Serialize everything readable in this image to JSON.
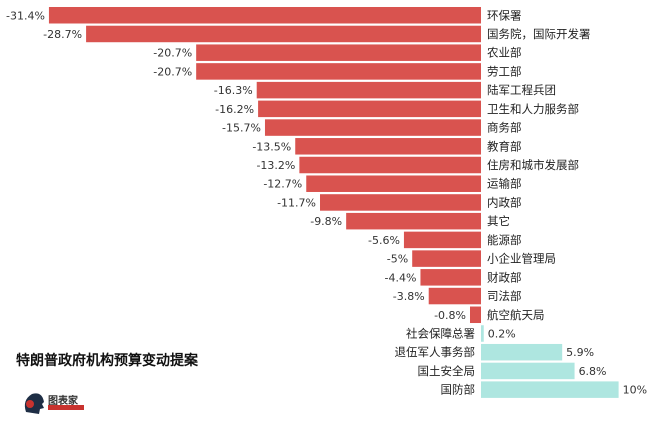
{
  "chart_data": {
    "type": "bar",
    "orientation": "horizontal",
    "title": "特朗普政府机构预算变动提案",
    "value_suffix": "%",
    "categories": [
      "环保署",
      "国务院，国际开发署",
      "农业部",
      "劳工部",
      "陆军工程兵团",
      "卫生和人力服务部",
      "商务部",
      "教育部",
      "住房和城市发展部",
      "运输部",
      "内政部",
      "其它",
      "能源部",
      "小企业管理局",
      "财政部",
      "司法部",
      "航空航天局",
      "社会保障总署",
      "退伍军人事务部",
      "国土安全局",
      "国防部"
    ],
    "values": [
      -31.4,
      -28.7,
      -20.7,
      -20.7,
      -16.3,
      -16.2,
      -15.7,
      -13.5,
      -13.2,
      -12.7,
      -11.7,
      -9.8,
      -5.6,
      -5,
      -4.4,
      -3.8,
      -0.8,
      0.2,
      5.9,
      6.8,
      10
    ],
    "labels": [
      "-31.4%",
      "-28.7%",
      "-20.7%",
      "-20.7%",
      "-16.3%",
      "-16.2%",
      "-15.7%",
      "-13.5%",
      "-13.2%",
      "-12.7%",
      "-11.7%",
      "-9.8%",
      "-5.6%",
      "-5%",
      "-4.4%",
      "-3.8%",
      "-0.8%",
      "0.2%",
      "5.9%",
      "6.8%",
      "10%"
    ],
    "xlim": [
      -31.4,
      10
    ],
    "grid": false,
    "colors": {
      "negative": "#d9534f",
      "positive": "#aee6e0"
    }
  },
  "logo": {
    "text": "图表家",
    "color": "#c8332f"
  }
}
